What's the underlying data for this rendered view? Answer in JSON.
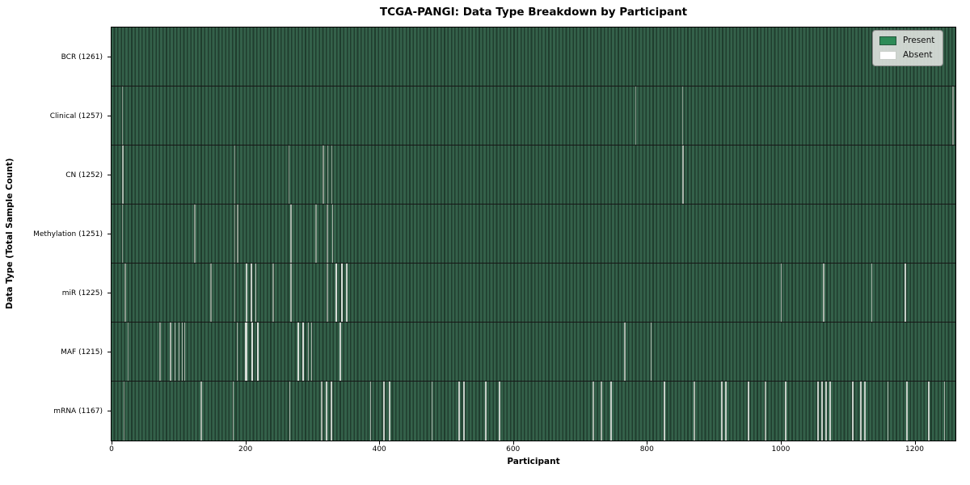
{
  "title": "TCGA-PANGI: Data Type Breakdown by Participant",
  "chart_data": {
    "type": "heatmap",
    "title": "TCGA-PANGI: Data Type Breakdown by Participant",
    "xlabel": "Participant",
    "ylabel": "Data Type (Total Sample Count)",
    "x_ticks": [
      0,
      200,
      400,
      600,
      800,
      1000,
      1200
    ],
    "n_participants": 1261,
    "grid": "row-separators-only",
    "legend_position": "upper-right-inside",
    "legend": [
      {
        "label": "Present",
        "color": "#2e8b57"
      },
      {
        "label": "Absent",
        "color": "#ffffff"
      }
    ],
    "colors": {
      "present_stripe_light": "#34614a",
      "present_stripe_dark": "#203d2e",
      "absent_line_single": "#8a988c",
      "absent_line_double": "#a9b4aa",
      "absent_line_triple": "#c6cec7",
      "absent_line_wide": "#d7ddd7",
      "legend_bg": "#dbe0db",
      "spine": "#000000",
      "background": "#ffffff"
    },
    "rows": [
      {
        "name": "BCR",
        "label": "BCR (1261)",
        "present_count": 1261,
        "absent_count": 0,
        "absent_runs": []
      },
      {
        "name": "Clinical",
        "label": "Clinical (1257)",
        "present_count": 1257,
        "absent_count": 4,
        "absent_runs": [
          [
            16,
            1
          ],
          [
            783,
            1
          ],
          [
            853,
            1
          ],
          [
            1257,
            1
          ]
        ]
      },
      {
        "name": "CN",
        "label": "CN (1252)",
        "present_count": 1252,
        "absent_count": 9,
        "absent_runs": [
          [
            16,
            2
          ],
          [
            184,
            1
          ],
          [
            265,
            1
          ],
          [
            316,
            1
          ],
          [
            323,
            1
          ],
          [
            329,
            1
          ],
          [
            853,
            2
          ]
        ]
      },
      {
        "name": "Methylation",
        "label": "Methylation (1251)",
        "present_count": 1251,
        "absent_count": 10,
        "absent_runs": [
          [
            16,
            1
          ],
          [
            124,
            1
          ],
          [
            184,
            1
          ],
          [
            188,
            1
          ],
          [
            267,
            2
          ],
          [
            305,
            1
          ],
          [
            322,
            1
          ],
          [
            329,
            2
          ]
        ]
      },
      {
        "name": "miR",
        "label": "miR (1225)",
        "present_count": 1225,
        "absent_count": 36,
        "absent_runs": [
          [
            20,
            1
          ],
          [
            148,
            1
          ],
          [
            184,
            1
          ],
          [
            200,
            3
          ],
          [
            207,
            3
          ],
          [
            214,
            3
          ],
          [
            241,
            1
          ],
          [
            267,
            2
          ],
          [
            322,
            1
          ],
          [
            334,
            4
          ],
          [
            342,
            4
          ],
          [
            350,
            3
          ],
          [
            1000,
            2
          ],
          [
            1063,
            2
          ],
          [
            1135,
            2
          ],
          [
            1185,
            3
          ]
        ]
      },
      {
        "name": "MAF",
        "label": "MAF (1215)",
        "present_count": 1215,
        "absent_count": 46,
        "absent_runs": [
          [
            24,
            1
          ],
          [
            72,
            1
          ],
          [
            87,
            2
          ],
          [
            94,
            2
          ],
          [
            100,
            2
          ],
          [
            105,
            2
          ],
          [
            108,
            2
          ],
          [
            187,
            2
          ],
          [
            199,
            5
          ],
          [
            208,
            4
          ],
          [
            217,
            4
          ],
          [
            277,
            4
          ],
          [
            284,
            4
          ],
          [
            293,
            2
          ],
          [
            298,
            2
          ],
          [
            340,
            3
          ],
          [
            766,
            2
          ],
          [
            805,
            2
          ]
        ]
      },
      {
        "name": "mRNA",
        "label": "mRNA (1167)",
        "present_count": 1167,
        "absent_count": 94,
        "absent_runs": [
          [
            18,
            1
          ],
          [
            133,
            2
          ],
          [
            181,
            2
          ],
          [
            265,
            2
          ],
          [
            313,
            2
          ],
          [
            320,
            3
          ],
          [
            327,
            3
          ],
          [
            386,
            2
          ],
          [
            406,
            3
          ],
          [
            414,
            3
          ],
          [
            478,
            2
          ],
          [
            518,
            3
          ],
          [
            525,
            3
          ],
          [
            558,
            3
          ],
          [
            578,
            3
          ],
          [
            719,
            2
          ],
          [
            731,
            2
          ],
          [
            745,
            3
          ],
          [
            825,
            3
          ],
          [
            870,
            2
          ],
          [
            910,
            3
          ],
          [
            916,
            3
          ],
          [
            950,
            3
          ],
          [
            976,
            2
          ],
          [
            1006,
            3
          ],
          [
            1054,
            3
          ],
          [
            1060,
            3
          ],
          [
            1066,
            3
          ],
          [
            1072,
            3
          ],
          [
            1106,
            3
          ],
          [
            1118,
            3
          ],
          [
            1124,
            3
          ],
          [
            1159,
            2
          ],
          [
            1187,
            3
          ],
          [
            1220,
            3
          ],
          [
            1244,
            2
          ]
        ]
      }
    ]
  }
}
